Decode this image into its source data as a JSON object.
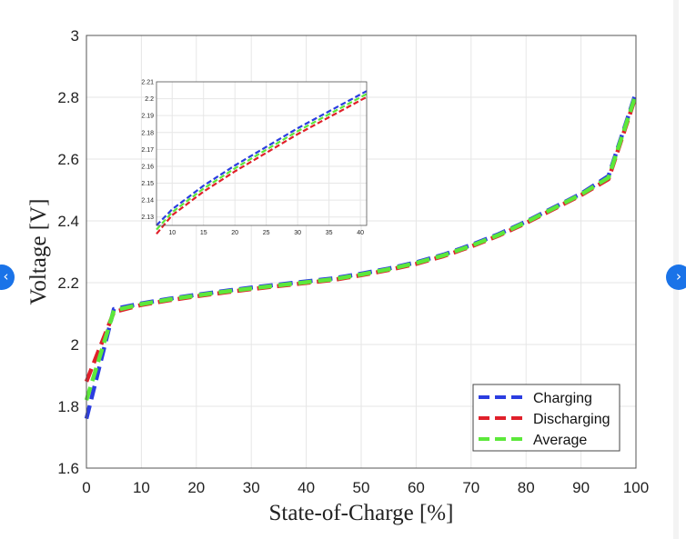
{
  "navigation": {
    "prev_icon": "‹",
    "next_icon": "›"
  },
  "chart_data": {
    "type": "line",
    "xlabel": "State-of-Charge [%]",
    "ylabel": "Voltage [V]",
    "xlim": [
      0,
      100
    ],
    "ylim": [
      1.6,
      3.0
    ],
    "xticks": [
      0,
      10,
      20,
      30,
      40,
      50,
      60,
      70,
      80,
      90,
      100
    ],
    "yticks": [
      1.6,
      1.8,
      2.0,
      2.2,
      2.4,
      2.6,
      2.8,
      3.0
    ],
    "ytick_labels": [
      "1.6",
      "1.8",
      "2",
      "2.2",
      "2.4",
      "2.6",
      "2.8",
      "3"
    ],
    "grid": true,
    "legend_position": "bottom-right",
    "x": [
      0,
      5,
      10,
      15,
      20,
      25,
      30,
      35,
      40,
      45,
      50,
      55,
      60,
      65,
      70,
      75,
      80,
      85,
      90,
      95,
      100
    ],
    "series": [
      {
        "name": "Charging",
        "color": "#2b3de0",
        "dash": "dashed",
        "values": [
          1.76,
          2.115,
          2.133,
          2.148,
          2.161,
          2.173,
          2.184,
          2.194,
          2.204,
          2.214,
          2.229,
          2.246,
          2.266,
          2.291,
          2.322,
          2.357,
          2.398,
          2.443,
          2.488,
          2.545,
          2.815
        ]
      },
      {
        "name": "Discharging",
        "color": "#e0202a",
        "dash": "dashed",
        "values": [
          1.88,
          2.105,
          2.128,
          2.143,
          2.156,
          2.168,
          2.179,
          2.189,
          2.199,
          2.209,
          2.224,
          2.241,
          2.261,
          2.286,
          2.317,
          2.352,
          2.393,
          2.438,
          2.483,
          2.535,
          2.805
        ]
      },
      {
        "name": "Average",
        "color": "#5ce83a",
        "dash": "dashed",
        "values": [
          1.82,
          2.11,
          2.1305,
          2.1455,
          2.1585,
          2.1705,
          2.1815,
          2.1915,
          2.2015,
          2.2115,
          2.2265,
          2.2435,
          2.2635,
          2.2885,
          2.3195,
          2.3545,
          2.3955,
          2.4405,
          2.4855,
          2.54,
          2.81
        ]
      }
    ],
    "inset": {
      "xlim": [
        7.5,
        41
      ],
      "ylim": [
        2.125,
        2.21
      ],
      "xticks": [
        10,
        15,
        20,
        25,
        30,
        35,
        40
      ],
      "yticks": [
        2.13,
        2.14,
        2.15,
        2.16,
        2.17,
        2.18,
        2.19,
        2.2,
        2.21
      ],
      "ytick_labels": [
        "2.13",
        "2.14",
        "2.15",
        "2.16",
        "2.17",
        "2.18",
        "2.19",
        "2.2",
        "2.21"
      ],
      "x": [
        7.5,
        10,
        15,
        20,
        25,
        30,
        35,
        41
      ],
      "series": [
        {
          "name": "Charging",
          "values": [
            2.125,
            2.1345,
            2.1485,
            2.1605,
            2.1715,
            2.1825,
            2.1925,
            2.2045
          ]
        },
        {
          "name": "Discharging",
          "values": [
            2.12,
            2.131,
            2.145,
            2.157,
            2.168,
            2.179,
            2.189,
            2.201
          ]
        },
        {
          "name": "Average",
          "values": [
            2.1225,
            2.1328,
            2.1468,
            2.1588,
            2.1698,
            2.1808,
            2.1908,
            2.2028
          ]
        }
      ]
    }
  }
}
